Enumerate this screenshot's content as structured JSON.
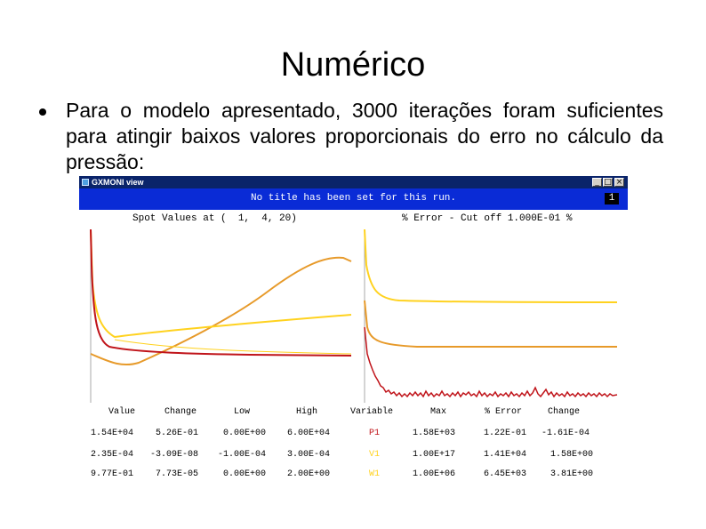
{
  "slide": {
    "title": "Numérico",
    "bullet": "Para o modelo apresentado, 3000 iterações foram suficientes para atingir baixos valores proporcionais do erro no cálculo da pressão:"
  },
  "window": {
    "title": "GXMONI view",
    "controls": {
      "minimize": "_",
      "maximize": "□",
      "close": "×"
    },
    "run_title": "No title has been set for this run.",
    "run_number": "1"
  },
  "panels": {
    "left_header": "Spot Values at (  1,  4, 20)",
    "right_header": "% Error - Cut off 1.000E-01 %"
  },
  "colors": {
    "window_title_bg": "#0a246a",
    "run_bar_bg": "#0a2bd6",
    "series_p1": "#c0141a",
    "series_v1": "#ffd21f",
    "series_w1": "#e79a2a"
  },
  "table": {
    "headers": [
      "Value",
      "Change",
      "Low",
      "High",
      "Variable",
      "Max",
      "% Error",
      "Change"
    ],
    "rows": [
      {
        "values": [
          "1.54E+04",
          "5.26E-01",
          "0.00E+00",
          "6.00E+04",
          "P1",
          "1.58E+03",
          "1.22E-01",
          "-1.61E-04"
        ],
        "var_color": "#c0141a"
      },
      {
        "values": [
          "2.35E-04",
          "-3.09E-08",
          "-1.00E-04",
          "3.00E-04",
          "V1",
          "1.00E+17",
          "1.41E+04",
          "1.58E+00"
        ],
        "var_color": "#ffd21f"
      },
      {
        "values": [
          "9.77E-01",
          "7.73E-05",
          "0.00E+00",
          "2.00E+00",
          "W1",
          "1.00E+06",
          "6.45E+03",
          "3.81E+00"
        ],
        "var_color": "#ffd21f"
      }
    ]
  }
}
